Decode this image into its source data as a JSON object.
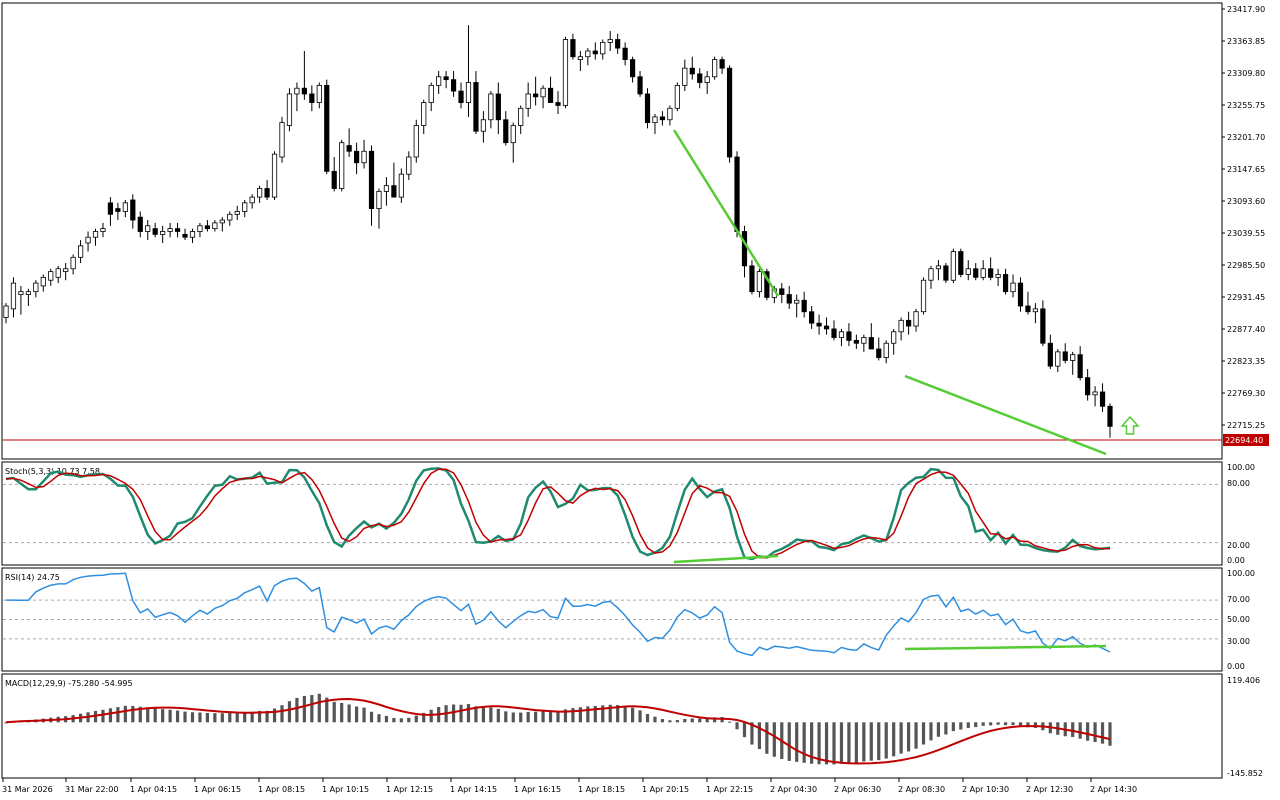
{
  "instrument": {
    "current_price": "22694.40",
    "price_line_color": "#c00000",
    "bull_fill": "#ffffff",
    "bear_fill": "#000000",
    "trendline_color": "#55cc33",
    "arrow_icon": "up-arrow-icon",
    "arrow_color": "#55cc33"
  },
  "main_panel": {
    "price_labels": [
      "23417.90",
      "23363.85",
      "23309.80",
      "23255.75",
      "23201.70",
      "23147.65",
      "23093.60",
      "23039.55",
      "22985.50",
      "22931.45",
      "22877.40",
      "22823.35",
      "22769.30",
      "22715.25"
    ]
  },
  "time_axis": {
    "labels": [
      "31 Mar 2026",
      "31 Mar 22:00",
      "1 Apr 04:15",
      "1 Apr 06:15",
      "1 Apr 08:15",
      "1 Apr 10:15",
      "1 Apr 12:15",
      "1 Apr 14:15",
      "1 Apr 16:15",
      "1 Apr 18:15",
      "1 Apr 20:15",
      "1 Apr 22:15",
      "2 Apr 04:30",
      "2 Apr 06:30",
      "2 Apr 08:30",
      "2 Apr 10:30",
      "2 Apr 12:30",
      "2 Apr 14:30"
    ]
  },
  "stoch": {
    "title": "Stoch(5,3,3) 10.73 7.58",
    "levels": [
      "100.00",
      "80.00",
      "20.00",
      "0.00"
    ],
    "main_color": "#1f8a70",
    "signal_color": "#c00000"
  },
  "rsi": {
    "title": "RSI(14) 24.75",
    "levels": [
      "100.00",
      "70.00",
      "50.00",
      "30.00",
      "0.00"
    ],
    "line_color": "#2e8fe0"
  },
  "macd": {
    "title": "MACD(12,29,9) -75.280 -54.995",
    "levels": [
      "119.406",
      "-145.852"
    ],
    "hist_color": "#555555",
    "signal_color": "#c00000"
  },
  "chart_data": {
    "type": "candlestick",
    "price_range": [
      22650,
      23430
    ],
    "candles_ohlc": [
      [
        22890,
        22915,
        22880,
        22910
      ],
      [
        22905,
        22960,
        22890,
        22950
      ],
      [
        22930,
        22945,
        22895,
        22935
      ],
      [
        22930,
        22940,
        22910,
        22935
      ],
      [
        22935,
        22955,
        22925,
        22950
      ],
      [
        22945,
        22965,
        22935,
        22960
      ],
      [
        22955,
        22975,
        22945,
        22970
      ],
      [
        22960,
        22980,
        22950,
        22975
      ],
      [
        22970,
        22985,
        22955,
        22975
      ],
      [
        22975,
        23000,
        22965,
        22995
      ],
      [
        22995,
        23025,
        22985,
        23015
      ],
      [
        23020,
        23040,
        23005,
        23030
      ],
      [
        23030,
        23045,
        23015,
        23040
      ],
      [
        23040,
        23055,
        23030,
        23045
      ],
      [
        23090,
        23100,
        23050,
        23070
      ],
      [
        23080,
        23090,
        23060,
        23075
      ],
      [
        23075,
        23095,
        23065,
        23090
      ],
      [
        23095,
        23105,
        23045,
        23060
      ],
      [
        23065,
        23075,
        23030,
        23040
      ],
      [
        23040,
        23060,
        23025,
        23050
      ],
      [
        23045,
        23055,
        23030,
        23035
      ],
      [
        23035,
        23050,
        23020,
        23040
      ],
      [
        23040,
        23055,
        23030,
        23045
      ],
      [
        23045,
        23055,
        23030,
        23040
      ],
      [
        23035,
        23045,
        23025,
        23030
      ],
      [
        23030,
        23045,
        23020,
        23040
      ],
      [
        23040,
        23055,
        23030,
        23050
      ],
      [
        23050,
        23060,
        23040,
        23045
      ],
      [
        23045,
        23060,
        23040,
        23055
      ],
      [
        23055,
        23065,
        23040,
        23060
      ],
      [
        23060,
        23075,
        23050,
        23070
      ],
      [
        23070,
        23085,
        23060,
        23075
      ],
      [
        23075,
        23095,
        23065,
        23090
      ],
      [
        23090,
        23105,
        23080,
        23100
      ],
      [
        23100,
        23120,
        23090,
        23115
      ],
      [
        23115,
        23130,
        23095,
        23100
      ],
      [
        23100,
        23180,
        23095,
        23175
      ],
      [
        23170,
        23240,
        23160,
        23230
      ],
      [
        23225,
        23290,
        23215,
        23280
      ],
      [
        23280,
        23300,
        23250,
        23290
      ],
      [
        23290,
        23355,
        23270,
        23280
      ],
      [
        23280,
        23295,
        23250,
        23265
      ],
      [
        23265,
        23300,
        23255,
        23295
      ],
      [
        23295,
        23305,
        23140,
        23145
      ],
      [
        23145,
        23170,
        23110,
        23115
      ],
      [
        23115,
        23200,
        23110,
        23195
      ],
      [
        23190,
        23220,
        23170,
        23180
      ],
      [
        23180,
        23195,
        23140,
        23160
      ],
      [
        23160,
        23200,
        23150,
        23180
      ],
      [
        23180,
        23190,
        23050,
        23080
      ],
      [
        23080,
        23115,
        23045,
        23110
      ],
      [
        23110,
        23135,
        23085,
        23120
      ],
      [
        23120,
        23160,
        23100,
        23100
      ],
      [
        23100,
        23150,
        23090,
        23140
      ],
      [
        23140,
        23180,
        23130,
        23170
      ],
      [
        23170,
        23235,
        23160,
        23225
      ],
      [
        23225,
        23270,
        23210,
        23265
      ],
      [
        23265,
        23300,
        23250,
        23295
      ],
      [
        23295,
        23320,
        23280,
        23310
      ],
      [
        23310,
        23320,
        23290,
        23305
      ],
      [
        23305,
        23320,
        23275,
        23285
      ],
      [
        23285,
        23300,
        23255,
        23265
      ],
      [
        23265,
        23400,
        23240,
        23300
      ],
      [
        23300,
        23320,
        23210,
        23215
      ],
      [
        23215,
        23250,
        23195,
        23235
      ],
      [
        23235,
        23285,
        23220,
        23280
      ],
      [
        23280,
        23300,
        23210,
        23235
      ],
      [
        23235,
        23250,
        23190,
        23195
      ],
      [
        23195,
        23230,
        23160,
        23225
      ],
      [
        23225,
        23260,
        23210,
        23255
      ],
      [
        23255,
        23300,
        23240,
        23280
      ],
      [
        23280,
        23310,
        23260,
        23275
      ],
      [
        23275,
        23295,
        23255,
        23290
      ],
      [
        23290,
        23310,
        23270,
        23265
      ],
      [
        23265,
        23285,
        23245,
        23260
      ],
      [
        23260,
        23380,
        23255,
        23375
      ],
      [
        23375,
        23385,
        23340,
        23345
      ],
      [
        23340,
        23355,
        23320,
        23345
      ],
      [
        23345,
        23360,
        23330,
        23355
      ],
      [
        23355,
        23370,
        23340,
        23350
      ],
      [
        23350,
        23375,
        23340,
        23370
      ],
      [
        23370,
        23390,
        23355,
        23375
      ],
      [
        23375,
        23385,
        23350,
        23360
      ],
      [
        23360,
        23370,
        23330,
        23340
      ],
      [
        23340,
        23345,
        23300,
        23310
      ],
      [
        23310,
        23320,
        23275,
        23280
      ],
      [
        23280,
        23290,
        23220,
        23230
      ],
      [
        23230,
        23245,
        23210,
        23240
      ],
      [
        23240,
        23250,
        23225,
        23235
      ],
      [
        23235,
        23260,
        23225,
        23255
      ],
      [
        23255,
        23300,
        23250,
        23295
      ],
      [
        23295,
        23340,
        23285,
        23325
      ],
      [
        23325,
        23345,
        23305,
        23315
      ],
      [
        23315,
        23325,
        23290,
        23300
      ],
      [
        23300,
        23320,
        23280,
        23310
      ],
      [
        23310,
        23345,
        23305,
        23340
      ],
      [
        23340,
        23345,
        23315,
        23325
      ],
      [
        23325,
        23330,
        23160,
        23170
      ],
      [
        23170,
        23180,
        23030,
        23040
      ],
      [
        23040,
        23050,
        22960,
        22980
      ],
      [
        22980,
        22990,
        22930,
        22935
      ],
      [
        22935,
        22975,
        22925,
        22970
      ],
      [
        22970,
        22975,
        22920,
        22925
      ],
      [
        22925,
        22945,
        22915,
        22940
      ],
      [
        22940,
        22950,
        22915,
        22930
      ],
      [
        22930,
        22945,
        22905,
        22915
      ],
      [
        22915,
        22930,
        22890,
        22920
      ],
      [
        22920,
        22935,
        22890,
        22900
      ],
      [
        22900,
        22910,
        22870,
        22880
      ],
      [
        22880,
        22895,
        22860,
        22875
      ],
      [
        22875,
        22890,
        22860,
        22870
      ],
      [
        22870,
        22885,
        22850,
        22855
      ],
      [
        22855,
        22870,
        22840,
        22865
      ],
      [
        22865,
        22880,
        22840,
        22850
      ],
      [
        22850,
        22860,
        22835,
        22845
      ],
      [
        22845,
        22860,
        22830,
        22855
      ],
      [
        22855,
        22880,
        22840,
        22835
      ],
      [
        22835,
        22855,
        22815,
        22820
      ],
      [
        22820,
        22850,
        22810,
        22845
      ],
      [
        22845,
        22870,
        22825,
        22865
      ],
      [
        22865,
        22890,
        22850,
        22885
      ],
      [
        22885,
        22900,
        22860,
        22875
      ],
      [
        22875,
        22905,
        22865,
        22900
      ],
      [
        22900,
        22960,
        22895,
        22955
      ],
      [
        22955,
        22980,
        22940,
        22975
      ],
      [
        22975,
        22990,
        22955,
        22980
      ],
      [
        22980,
        22985,
        22950,
        22955
      ],
      [
        22955,
        23010,
        22950,
        23005
      ],
      [
        23005,
        23010,
        22960,
        22965
      ],
      [
        22965,
        22990,
        22955,
        22975
      ],
      [
        22975,
        22985,
        22955,
        22960
      ],
      [
        22960,
        22990,
        22955,
        22975
      ],
      [
        22975,
        22995,
        22955,
        22960
      ],
      [
        22960,
        22975,
        22945,
        22965
      ],
      [
        22965,
        22975,
        22930,
        22935
      ],
      [
        22935,
        22965,
        22925,
        22950
      ],
      [
        22950,
        22960,
        22900,
        22910
      ],
      [
        22910,
        22935,
        22895,
        22900
      ],
      [
        22900,
        22915,
        22880,
        22905
      ],
      [
        22905,
        22920,
        22840,
        22845
      ],
      [
        22845,
        22860,
        22800,
        22805
      ],
      [
        22805,
        22835,
        22795,
        22830
      ],
      [
        22830,
        22845,
        22810,
        22815
      ],
      [
        22815,
        22830,
        22790,
        22825
      ],
      [
        22825,
        22840,
        22780,
        22785
      ],
      [
        22785,
        22800,
        22745,
        22755
      ],
      [
        22755,
        22770,
        22735,
        22760
      ],
      [
        22760,
        22775,
        22725,
        22735
      ],
      [
        22735,
        22740,
        22680,
        22700
      ]
    ]
  }
}
